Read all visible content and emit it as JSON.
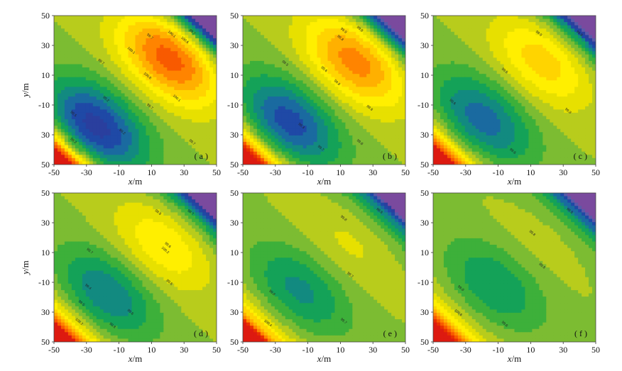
{
  "chart_data": [
    {
      "type": "contour",
      "panel_label": "( a )",
      "xlabel": "x/m",
      "ylabel": "y/m",
      "xticks": [
        "-50",
        "-30",
        "-10",
        "10",
        "30",
        "50"
      ],
      "yticks": [
        "50",
        "30",
        "10",
        "-10",
        "30",
        "50"
      ],
      "xlim": [
        -50,
        50
      ],
      "ylim": [
        -50,
        50
      ],
      "high": {
        "x": 22,
        "y": 22,
        "amp": 1.0
      },
      "low": {
        "x": -25,
        "y": -25,
        "amp": -1.0
      },
      "contour_labels": [
        "100.1",
        "100.6",
        "100.1",
        "99.7",
        "99.7",
        "100.6",
        "100.1",
        "99.7",
        "99.2",
        "99.2",
        "99.5",
        "99.2",
        "99.7",
        "99.7"
      ]
    },
    {
      "type": "contour",
      "panel_label": "( b )",
      "xlabel": "x/m",
      "ylabel": "",
      "xticks": [
        "-50",
        "-30",
        "-10",
        "10",
        "30",
        "50"
      ],
      "yticks": [
        "50",
        "30",
        "10",
        "-10",
        "30",
        "50"
      ],
      "xlim": [
        -50,
        50
      ],
      "ylim": [
        -50,
        50
      ],
      "high": {
        "x": 20,
        "y": 20,
        "amp": 0.85
      },
      "low": {
        "x": -22,
        "y": -22,
        "amp": -0.85
      },
      "contour_labels": [
        "99.9",
        "99.8",
        "99.5",
        "99.8",
        "99.9",
        "99.6",
        "99.8",
        "99.3",
        "99.7",
        "99.6"
      ]
    },
    {
      "type": "contour",
      "panel_label": "( c )",
      "xlabel": "x/m",
      "ylabel": "",
      "xticks": [
        "-50",
        "-30",
        "-10",
        "10",
        "30",
        "50"
      ],
      "yticks": [
        "50",
        "30",
        "10",
        "-10",
        "30",
        "50"
      ],
      "xlim": [
        -50,
        50
      ],
      "ylim": [
        -50,
        50
      ],
      "high": {
        "x": 18,
        "y": 20,
        "amp": 0.55
      },
      "low": {
        "x": -20,
        "y": -20,
        "amp": -0.7
      },
      "contour_labels": [
        "99.9",
        "99.5",
        "99.9",
        "99.6",
        "99.8",
        "99.6"
      ]
    },
    {
      "type": "contour",
      "panel_label": "( d )",
      "xlabel": "x/m",
      "ylabel": "y/m",
      "xticks": [
        "-50",
        "-30",
        "-10",
        "10",
        "30",
        "50"
      ],
      "yticks": [
        "50",
        "30",
        "10",
        "-10",
        "30",
        "50"
      ],
      "xlim": [
        -50,
        50
      ],
      "ylim": [
        -50,
        50
      ],
      "high": {
        "x": 18,
        "y": 15,
        "amp": 0.45
      },
      "low": {
        "x": -18,
        "y": -18,
        "amp": -0.6
      },
      "contour_labels": [
        "99.8",
        "99.6",
        "99.7",
        "100.2",
        "99.6",
        "99.4",
        "99.8",
        "99.5",
        "100.2",
        "99.6",
        "99.7"
      ]
    },
    {
      "type": "contour",
      "panel_label": "( e )",
      "xlabel": "x/m",
      "ylabel": "",
      "xticks": [
        "-50",
        "-30",
        "-10",
        "10",
        "30",
        "50"
      ],
      "yticks": [
        "50",
        "30",
        "10",
        "-10",
        "30",
        "50"
      ],
      "xlim": [
        -50,
        50
      ],
      "ylim": [
        -50,
        50
      ],
      "high": {
        "x": 15,
        "y": 15,
        "amp": 0.2
      },
      "low": {
        "x": -15,
        "y": -15,
        "amp": -0.5
      },
      "contour_labels": [
        "99.8",
        "99.8",
        "99.7",
        "99.8",
        "100.4",
        "99.7"
      ]
    },
    {
      "type": "contour",
      "panel_label": "( f )",
      "xlabel": "x/m",
      "ylabel": "",
      "xticks": [
        "-50",
        "-30",
        "-10",
        "10",
        "30",
        "50"
      ],
      "yticks": [
        "50",
        "30",
        "10",
        "-10",
        "30",
        "50"
      ],
      "xlim": [
        -50,
        50
      ],
      "ylim": [
        -50,
        50
      ],
      "high": {
        "x": 15,
        "y": 15,
        "amp": 0.1
      },
      "low": {
        "x": -12,
        "y": -12,
        "amp": -0.45
      },
      "contour_labels": [
        "99.8",
        "99.8",
        "99.8",
        "99.8",
        "100.6",
        "99.6"
      ]
    }
  ],
  "colors": {
    "levels": [
      "#7a4a9e",
      "#5a5aa8",
      "#2a3f9e",
      "#1f49a6",
      "#1a6aa0",
      "#128a80",
      "#14a258",
      "#3db03a",
      "#7cbc32",
      "#b8cc1c",
      "#e7e000",
      "#ffef00",
      "#ffd400",
      "#ffb000",
      "#ff8400",
      "#f85a00",
      "#e83000",
      "#dd1a10"
    ]
  }
}
